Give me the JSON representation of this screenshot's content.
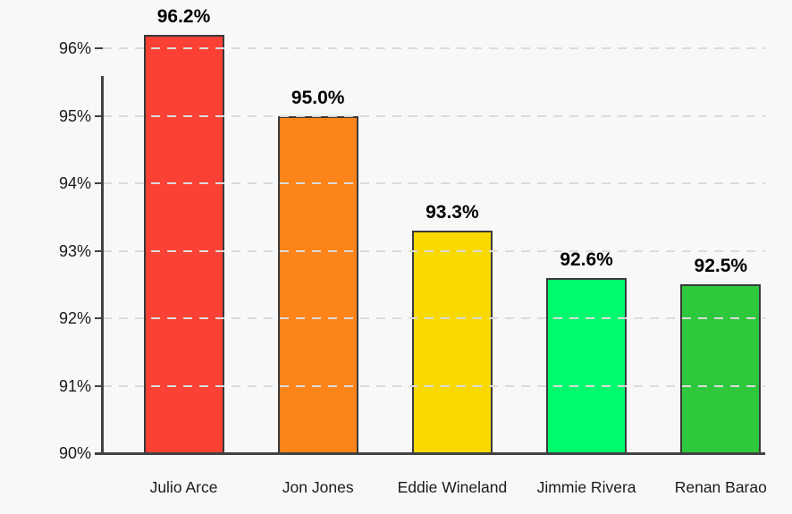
{
  "chart": {
    "background_color": "#F8F8F8",
    "axis_color": "#424242",
    "grid_color": "#DBDBDB",
    "value_label_color": "#000000",
    "y_tick_label_color": "#1A1A1A",
    "x_tick_label_color": "#1B1B1B"
  },
  "chart_data": {
    "type": "bar",
    "title": "",
    "xlabel": "",
    "ylabel": "",
    "categories": [
      "Julio Arce",
      "Jon Jones",
      "Eddie Wineland",
      "Jimmie Rivera",
      "Renan Barao"
    ],
    "values": [
      96.2,
      95.0,
      93.3,
      92.6,
      92.5
    ],
    "value_labels": [
      "96.2%",
      "95.0%",
      "93.3%",
      "92.6%",
      "92.5%"
    ],
    "bar_colors": [
      "#FB4034",
      "#FD8418",
      "#F8D900",
      "#00FA6E",
      "#2DC83C"
    ],
    "bar_border_color": "#3A3A3A",
    "ylim": [
      90,
      96.6
    ],
    "y_ticks": [
      {
        "value": 90,
        "label": "90%"
      },
      {
        "value": 91,
        "label": "91%"
      },
      {
        "value": 92,
        "label": "92%"
      },
      {
        "value": 93,
        "label": "93%"
      },
      {
        "value": 94,
        "label": "94%"
      },
      {
        "value": 95,
        "label": "95%"
      },
      {
        "value": 96,
        "label": "96%"
      }
    ],
    "grid": "horizontal-dashed",
    "legend": "none"
  }
}
